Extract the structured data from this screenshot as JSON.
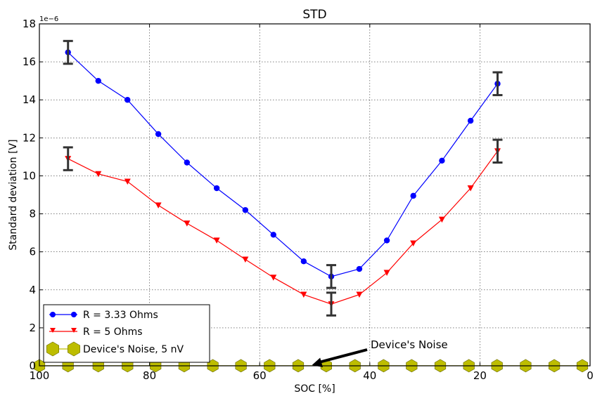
{
  "chart_data": {
    "type": "line",
    "title": "STD",
    "xlabel": "SOC [%]",
    "ylabel": "Standard deviation [V]",
    "y_offset_label": "1e−6",
    "xlim": [
      100,
      0
    ],
    "ylim": [
      0,
      18
    ],
    "x_ticks": [
      100,
      80,
      60,
      40,
      20,
      0
    ],
    "y_ticks": [
      0,
      2,
      4,
      6,
      8,
      10,
      12,
      14,
      16,
      18
    ],
    "grid": true,
    "legend_position": "lower-left",
    "series": [
      {
        "name": "R = 3.33 Ohms",
        "color": "#0000ff",
        "marker": "circle",
        "x": [
          94.8,
          89.3,
          84.0,
          78.4,
          73.2,
          67.8,
          62.6,
          57.5,
          52.0,
          47.0,
          41.9,
          36.9,
          32.1,
          26.9,
          21.7,
          16.8
        ],
        "y": [
          16.5,
          15.0,
          14.0,
          12.2,
          10.7,
          9.35,
          8.2,
          6.9,
          5.5,
          4.7,
          5.1,
          6.6,
          8.95,
          10.8,
          12.9,
          14.85
        ]
      },
      {
        "name": "R = 5 Ohms",
        "color": "#ff0000",
        "marker": "triangle-down",
        "x": [
          94.8,
          89.3,
          84.0,
          78.4,
          73.2,
          67.8,
          62.6,
          57.5,
          52.0,
          47.0,
          41.9,
          36.9,
          32.1,
          26.9,
          21.7,
          16.8
        ],
        "y": [
          10.9,
          10.1,
          9.7,
          8.45,
          7.5,
          6.6,
          5.6,
          4.65,
          3.75,
          3.25,
          3.75,
          4.9,
          6.45,
          7.7,
          9.35,
          11.3
        ]
      },
      {
        "name": "Device's Noise, 5 nV",
        "color": "#bdbd00",
        "marker": "hexagon",
        "x": [
          100,
          94.8,
          89.3,
          84.0,
          78.9,
          73.7,
          68.5,
          63.4,
          58.2,
          53.0,
          47.9,
          42.7,
          37.5,
          32.4,
          27.2,
          22.0,
          16.9,
          11.7,
          6.5,
          1.4
        ],
        "y": [
          0.005,
          0.005,
          0.005,
          0.005,
          0.005,
          0.005,
          0.005,
          0.005,
          0.005,
          0.005,
          0.005,
          0.005,
          0.005,
          0.005,
          0.005,
          0.005,
          0.005,
          0.005,
          0.005,
          0.005
        ]
      }
    ],
    "error_bars": [
      {
        "series": "R = 3.33 Ohms",
        "x": 94.8,
        "y": 16.5,
        "err": 0.6
      },
      {
        "series": "R = 3.33 Ohms",
        "x": 47.0,
        "y": 4.7,
        "err": 0.6
      },
      {
        "series": "R = 3.33 Ohms",
        "x": 16.8,
        "y": 14.85,
        "err": 0.6
      },
      {
        "series": "R = 5 Ohms",
        "x": 94.8,
        "y": 10.9,
        "err": 0.6
      },
      {
        "series": "R = 5 Ohms",
        "x": 47.0,
        "y": 3.25,
        "err": 0.6
      },
      {
        "series": "R = 5 Ohms",
        "x": 16.8,
        "y": 11.3,
        "err": 0.6
      }
    ],
    "annotation": {
      "text": "Device's Noise",
      "text_x": 40,
      "text_y": 1.2,
      "arrow_to_x": 50.5,
      "arrow_to_y": 0.0
    }
  }
}
